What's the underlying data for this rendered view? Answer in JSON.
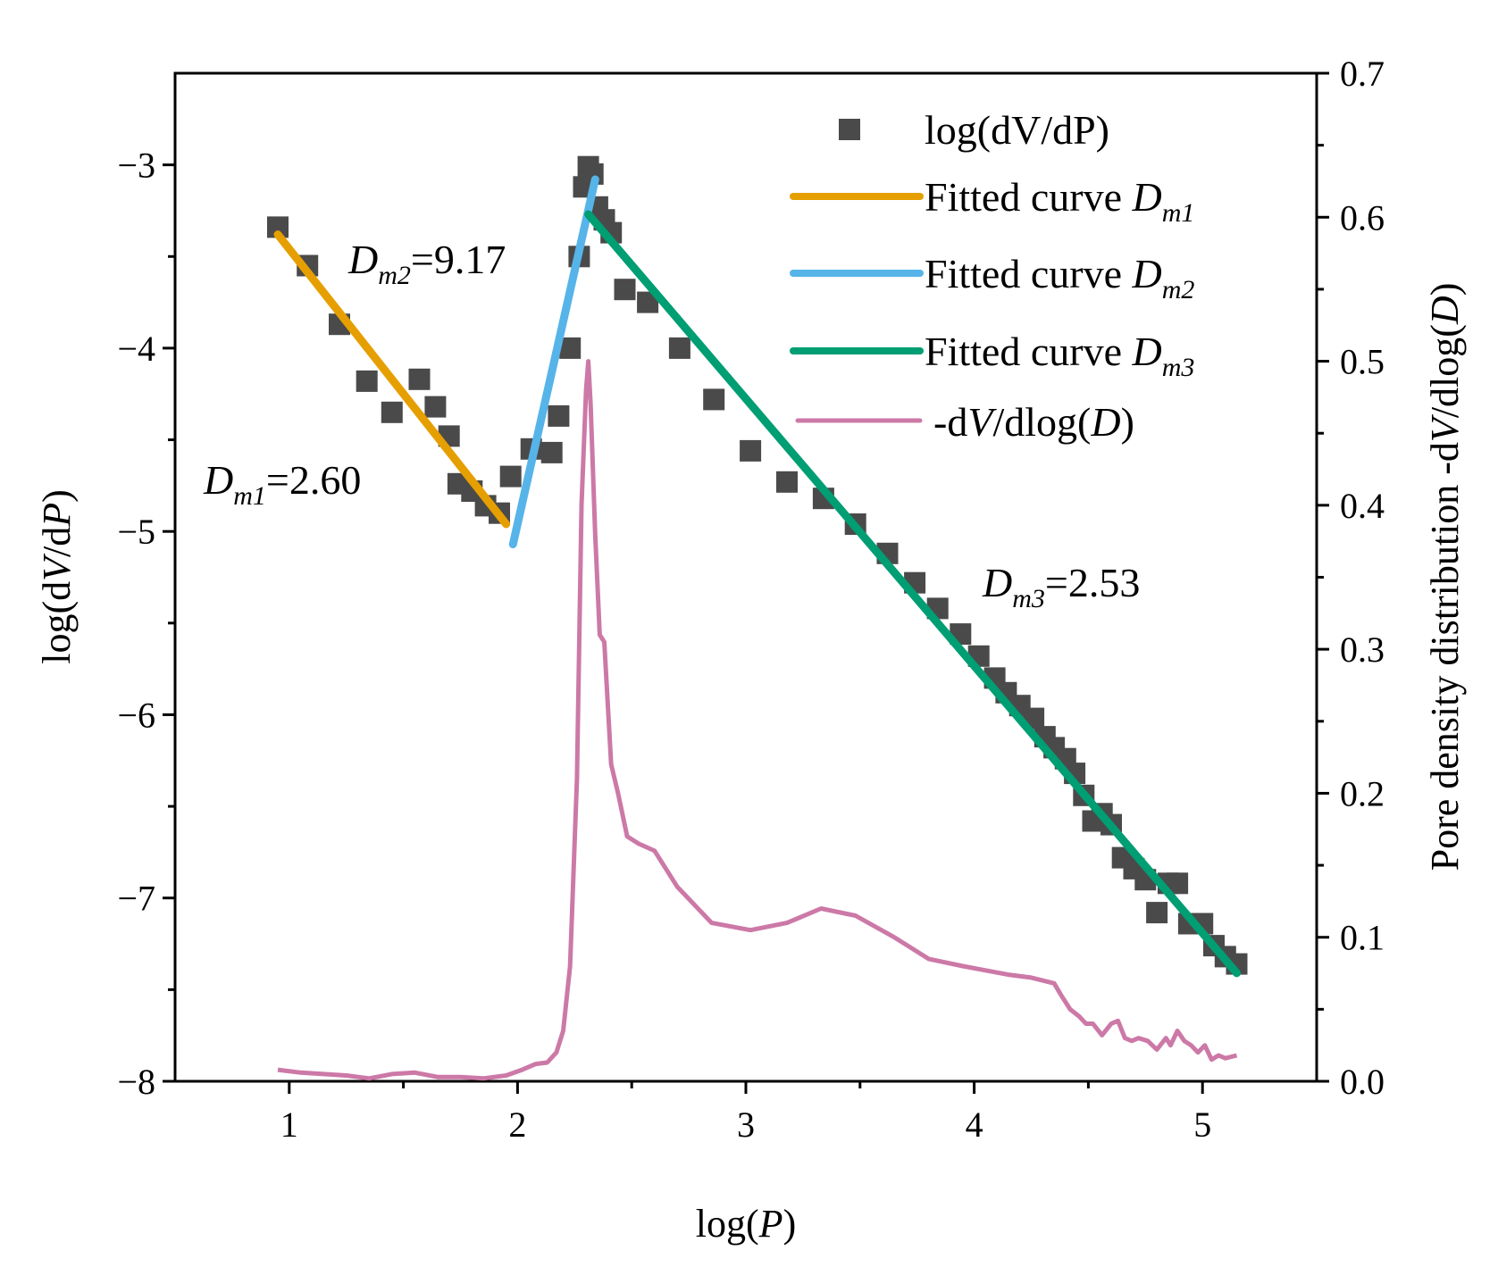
{
  "chart_data": {
    "type": "scatter",
    "title": "",
    "xlabel": {
      "pre": "log(",
      "var": "P",
      "post": ")"
    },
    "ylabel": {
      "pre": "log(d",
      "var1": "V",
      "mid": "/d",
      "var2": "P",
      "post": ")"
    },
    "ylabel_right": {
      "pre": "Pore density distribution  -d",
      "var1": "V",
      "mid": "/dlog(",
      "var2": "D",
      "post": ")"
    },
    "xlim": [
      0.5,
      5.5
    ],
    "ylim": [
      -8,
      -2.5
    ],
    "ylim_right": [
      0,
      0.7
    ],
    "x_ticks": [
      1,
      2,
      3,
      4,
      5
    ],
    "x_tick_labels": [
      "1",
      "2",
      "3",
      "4",
      "5"
    ],
    "y_ticks": [
      -3,
      -4,
      -5,
      -6,
      -7,
      -8
    ],
    "y_tick_labels": [
      "−3",
      "−4",
      "−5",
      "−6",
      "−7",
      "−8"
    ],
    "y_right_ticks": [
      0.7,
      0.6,
      0.5,
      0.4,
      0.3,
      0.2,
      0.1,
      0.0
    ],
    "y_right_tick_labels": [
      "0.7",
      "0.6",
      "0.5",
      "0.4",
      "0.3",
      "0.2",
      "0.1",
      "0.0"
    ],
    "colors": {
      "scatter": "#4a4a4a",
      "fit_dm1": "#e69f00",
      "fit_dm2": "#56b4e9",
      "fit_dm3": "#009e73",
      "density": "#cc79a7"
    },
    "legend": {
      "position": "top-right",
      "entries": [
        {
          "id": "scatter",
          "text": "log(dV/dP)"
        },
        {
          "id": "fit_dm1",
          "text": "Fitted curve ",
          "var": "D",
          "sub": "m1"
        },
        {
          "id": "fit_dm2",
          "text": "Fitted curve ",
          "var": "D",
          "sub": "m2"
        },
        {
          "id": "fit_dm3",
          "text": "Fitted curve ",
          "var": "D",
          "sub": "m3"
        },
        {
          "id": "density",
          "pre": "-d",
          "var1": "V",
          "mid": "/dlog(",
          "var2": "D",
          "post": ")"
        }
      ]
    },
    "annotations": [
      {
        "id": "dm2",
        "var": "D",
        "sub": "m2",
        "value": "=9.17"
      },
      {
        "id": "dm1",
        "var": "D",
        "sub": "m1",
        "value": "=2.60"
      },
      {
        "id": "dm3",
        "var": "D",
        "sub": "m3",
        "value": "=2.53"
      }
    ],
    "series": [
      {
        "name": "log(dV/dP)",
        "kind": "scatter",
        "x": [
          0.95,
          1.08,
          1.22,
          1.34,
          1.45,
          1.57,
          1.64,
          1.7,
          1.74,
          1.8,
          1.86,
          1.92,
          1.97,
          2.06,
          2.15,
          2.18,
          2.23,
          2.27,
          2.29,
          2.31,
          2.33,
          2.35,
          2.38,
          2.41,
          2.47,
          2.57,
          2.71,
          2.86,
          3.02,
          3.18,
          3.34,
          3.48,
          3.62,
          3.74,
          3.84,
          3.94,
          4.02,
          4.09,
          4.14,
          4.2,
          4.26,
          4.31,
          4.35,
          4.4,
          4.44,
          4.48,
          4.52,
          4.56,
          4.6,
          4.65,
          4.7,
          4.75,
          4.8,
          4.85,
          4.89,
          4.94,
          5.0,
          5.05,
          5.1,
          5.15
        ],
        "y": [
          -3.34,
          -3.55,
          -3.87,
          -4.18,
          -4.35,
          -4.17,
          -4.32,
          -4.48,
          -4.74,
          -4.78,
          -4.86,
          -4.9,
          -4.7,
          -4.55,
          -4.57,
          -4.37,
          -4.0,
          -3.5,
          -3.12,
          -3.01,
          -3.05,
          -3.23,
          -3.3,
          -3.37,
          -3.68,
          -3.75,
          -4.0,
          -4.28,
          -4.56,
          -4.73,
          -4.82,
          -4.96,
          -5.12,
          -5.28,
          -5.42,
          -5.56,
          -5.68,
          -5.8,
          -5.88,
          -5.95,
          -6.02,
          -6.12,
          -6.18,
          -6.24,
          -6.32,
          -6.44,
          -6.58,
          -6.54,
          -6.6,
          -6.78,
          -6.84,
          -6.9,
          -7.08,
          -6.92,
          -6.92,
          -7.14,
          -7.14,
          -7.26,
          -7.32,
          -7.36
        ]
      },
      {
        "name": "fit_dm1",
        "kind": "line",
        "x": [
          0.95,
          1.95
        ],
        "y": [
          -3.38,
          -4.96
        ]
      },
      {
        "name": "fit_dm2",
        "kind": "line",
        "x": [
          1.98,
          2.34
        ],
        "y": [
          -5.07,
          -3.08
        ]
      },
      {
        "name": "fit_dm3",
        "kind": "line",
        "x": [
          2.31,
          5.15
        ],
        "y": [
          -3.27,
          -7.41
        ]
      },
      {
        "name": "-dV/dlog(D)",
        "kind": "line",
        "axis": "right",
        "x": [
          0.95,
          1.05,
          1.15,
          1.25,
          1.35,
          1.45,
          1.55,
          1.65,
          1.75,
          1.85,
          1.95,
          2.02,
          2.08,
          2.13,
          2.17,
          2.2,
          2.23,
          2.26,
          2.28,
          2.3,
          2.31,
          2.32,
          2.34,
          2.36,
          2.38,
          2.41,
          2.44,
          2.48,
          2.53,
          2.6,
          2.7,
          2.85,
          3.02,
          3.18,
          3.33,
          3.48,
          3.65,
          3.8,
          3.95,
          4.05,
          4.15,
          4.25,
          4.35,
          4.38,
          4.42,
          4.46,
          4.49,
          4.52,
          4.56,
          4.6,
          4.63,
          4.66,
          4.69,
          4.72,
          4.76,
          4.8,
          4.84,
          4.86,
          4.89,
          4.92,
          4.95,
          4.98,
          5.01,
          5.04,
          5.07,
          5.1,
          5.15
        ],
        "y": [
          0.008,
          0.006,
          0.005,
          0.004,
          0.002,
          0.005,
          0.006,
          0.003,
          0.003,
          0.002,
          0.004,
          0.008,
          0.012,
          0.013,
          0.02,
          0.035,
          0.08,
          0.21,
          0.4,
          0.48,
          0.5,
          0.47,
          0.38,
          0.31,
          0.305,
          0.22,
          0.2,
          0.17,
          0.165,
          0.16,
          0.135,
          0.11,
          0.105,
          0.11,
          0.12,
          0.115,
          0.1,
          0.085,
          0.08,
          0.077,
          0.074,
          0.072,
          0.068,
          0.06,
          0.05,
          0.045,
          0.04,
          0.04,
          0.032,
          0.04,
          0.042,
          0.03,
          0.028,
          0.03,
          0.028,
          0.022,
          0.03,
          0.025,
          0.035,
          0.028,
          0.025,
          0.02,
          0.025,
          0.015,
          0.018,
          0.016,
          0.018
        ]
      }
    ]
  }
}
